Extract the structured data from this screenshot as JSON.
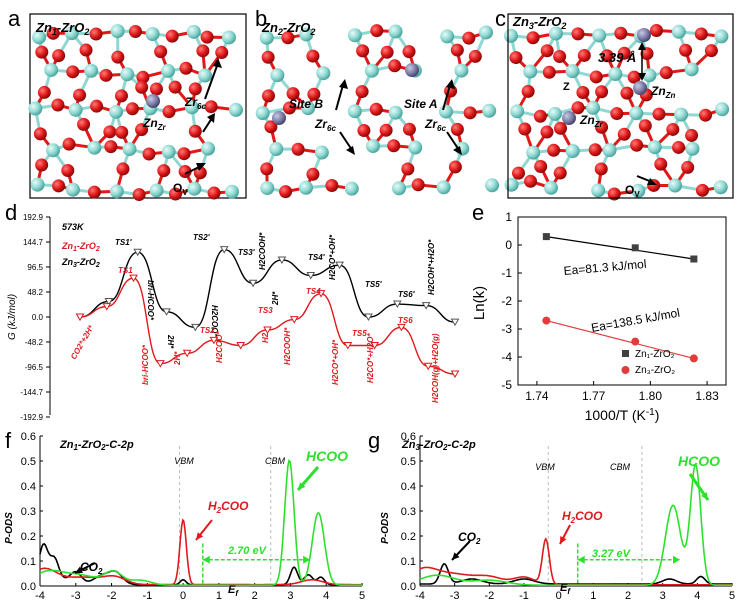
{
  "panel_letters": {
    "a": "a",
    "b": "b",
    "c": "c",
    "d": "d",
    "e": "e",
    "f": "f",
    "g": "g"
  },
  "panel_a": {
    "title_pre": "Zn",
    "title_sub": "1",
    "title_post": "-ZrO",
    "title_sub2": "2",
    "znzr": "Zn",
    "znzr_sub": "Zr",
    "zr6c": "Zr",
    "zr6c_sub": "6c",
    "ov": "O",
    "ov_sub": "V"
  },
  "panel_b": {
    "title_pre": "Zn",
    "title_sub": "2",
    "title_post": "-ZrO",
    "title_sub2": "2",
    "site_b": "Site B",
    "site_a": "Site A",
    "zr6c": "Zr",
    "zr6c_sub": "6c"
  },
  "panel_c": {
    "title_pre": "Zn",
    "title_sub": "3",
    "title_post": "-ZrO",
    "title_sub2": "2",
    "dist": "3.39 Å",
    "znzn": "Zn",
    "znzn_sub": "Zn",
    "znzr": "Zn",
    "znzr_sub": "Zr",
    "ov": "O",
    "ov_sub": "V",
    "z": "Z"
  },
  "panel_d": {
    "ylabel": "G (kJ/mol)",
    "temp": "573K",
    "legend": [
      {
        "name": "Zn1-ZrO2",
        "color": "#e0191e"
      },
      {
        "name": "Zn3-ZrO2",
        "color": "#000000"
      }
    ],
    "yticks": [
      "192.9",
      "144.7",
      "96.5",
      "48.2",
      "0.0",
      "-48.2",
      "-96.5",
      "-144.7",
      "-192.9"
    ],
    "black_labels": [
      "TS1'",
      "bri-HCOO*",
      "2H*",
      "TS2'",
      "H2COO*",
      "TS3'",
      "H2COOH*",
      "2H*",
      "TS4'",
      "H2CO*+OH*",
      "TS5'",
      "TS6'",
      "H2COH*+H2O*"
    ],
    "red_labels": [
      "CO2*+2H*",
      "TS1",
      "bri-HCOO*",
      "2H*",
      "TS2",
      "H2COO*",
      "TS3",
      "H2",
      "H2COOH*",
      "TS4",
      "H2CO*+OH*",
      "TS5",
      "H2CO*+H2O*",
      "TS6",
      "H2COH(g)+H2O(g)"
    ]
  },
  "chart_data": [
    {
      "type": "line",
      "title": "",
      "xlabel": "",
      "ylabel": "G (kJ/mol)",
      "ylim": [
        -192.9,
        192.9
      ],
      "series": [
        {
          "name": "Zn3-ZrO2",
          "color": "#000000",
          "values": [
            0,
            30,
            125,
            10,
            -20,
            130,
            65,
            110,
            80,
            100,
            0,
            25,
            22,
            -10
          ]
        },
        {
          "name": "Zn1-ZrO2",
          "color": "#e0191e",
          "values": [
            0,
            20,
            75,
            -90,
            -70,
            -45,
            -55,
            -25,
            -5,
            45,
            -55,
            -55,
            -20,
            -95,
            -110
          ]
        }
      ]
    },
    {
      "type": "scatter",
      "title": "",
      "xlabel": "1000/T (K-1)",
      "ylabel": "Ln(k)",
      "xlim": [
        1.73,
        1.84
      ],
      "ylim": [
        -5,
        1
      ],
      "xticks": [
        "1.74",
        "1.77",
        "1.80",
        "1.83"
      ],
      "yticks": [
        "1",
        "0",
        "-1",
        "-2",
        "-3",
        "-4",
        "-5"
      ],
      "legend_position": "bottom-right",
      "annotations": [
        "Ea=81.3 kJ/mol",
        "Ea=138.5 kJ/mol"
      ],
      "series": [
        {
          "name": "Zn1-ZrO2",
          "color": "#404040",
          "x": [
            1.745,
            1.792,
            1.823
          ],
          "y": [
            0.3,
            -0.1,
            -0.5
          ]
        },
        {
          "name": "Zn3-ZrO2",
          "color": "#e03c3c",
          "x": [
            1.745,
            1.792,
            1.823
          ],
          "y": [
            -2.7,
            -3.45,
            -4.05
          ]
        }
      ]
    },
    {
      "type": "line",
      "title": "Zn1-ZrO2-C-2p",
      "xlabel": "",
      "ylabel": "P-ODS",
      "xlim": [
        -4,
        5
      ],
      "ylim": [
        0,
        0.6
      ],
      "xticks": [
        "-4",
        "-3",
        "-2",
        "-1",
        "0",
        "1",
        "2",
        "3",
        "4",
        "5"
      ],
      "yticks": [
        "0.0",
        "0.1",
        "0.2",
        "0.3",
        "0.4",
        "0.5",
        "0.6"
      ],
      "annotations": [
        "VBM",
        "CBM",
        "2.70 eV",
        "Ef",
        "CO2",
        "H2COO",
        "HCOO"
      ],
      "series": [
        {
          "name": "CO2",
          "color": "#000000"
        },
        {
          "name": "H2COO",
          "color": "#e0191e"
        },
        {
          "name": "HCOO",
          "color": "#2ee02e"
        }
      ]
    },
    {
      "type": "line",
      "title": "Zn3-ZrO2-C-2p",
      "xlabel": "",
      "ylabel": "P-ODS",
      "xlim": [
        -4,
        5
      ],
      "ylim": [
        0,
        0.6
      ],
      "xticks": [
        "-4",
        "-3",
        "-2",
        "-1",
        "0",
        "1",
        "2",
        "3",
        "4",
        "5"
      ],
      "yticks": [
        "0.0",
        "0.1",
        "0.2",
        "0.3",
        "0.4",
        "0.5",
        "0.6"
      ],
      "annotations": [
        "VBM",
        "CBM",
        "3.27 eV",
        "Ef",
        "CO2",
        "H2COO",
        "HCOO"
      ],
      "series": [
        {
          "name": "CO2",
          "color": "#000000"
        },
        {
          "name": "H2COO",
          "color": "#e0191e"
        },
        {
          "name": "HCOO",
          "color": "#2ee02e"
        }
      ]
    }
  ],
  "panel_e": {
    "xlabel": "1000/T (K",
    "xlabel_sup": "-1",
    "xlabel_end": ")",
    "ylabel": "Ln(k)",
    "ea1": "Ea=81.3 kJ/mol",
    "ea2": "Ea=138.5 kJ/mol",
    "leg1": "Zn₁-ZrO₂",
    "leg2": "Zn₃-ZrO₂"
  },
  "panel_f": {
    "title": "Zn1-ZrO2-C-2p",
    "vbm": "VBM",
    "cbm": "CBM",
    "gap": "2.70 eV",
    "ef": "E",
    "ef_sub": "f",
    "co2": "CO",
    "co2_sub": "2",
    "h2coo": "H",
    "h2coo_sub": "2",
    "h2coo_end": "COO",
    "hcoo": "HCOO",
    "ylabel": "P-ODS"
  },
  "panel_g": {
    "title": "Zn3-ZrO2-C-2p",
    "vbm": "VBM",
    "cbm": "CBM",
    "gap": "3.27 eV",
    "ef": "E",
    "ef_sub": "f",
    "co2": "CO",
    "co2_sub": "2",
    "h2coo": "H",
    "h2coo_sub": "2",
    "h2coo_end": "COO",
    "hcoo": "HCOO",
    "ylabel": "P-ODS"
  },
  "colors": {
    "red": "#e0191e",
    "green": "#2ee02e",
    "cyan": "#8fd8d2",
    "zn": "#7f7fa8",
    "oxygen": "#e01818"
  }
}
